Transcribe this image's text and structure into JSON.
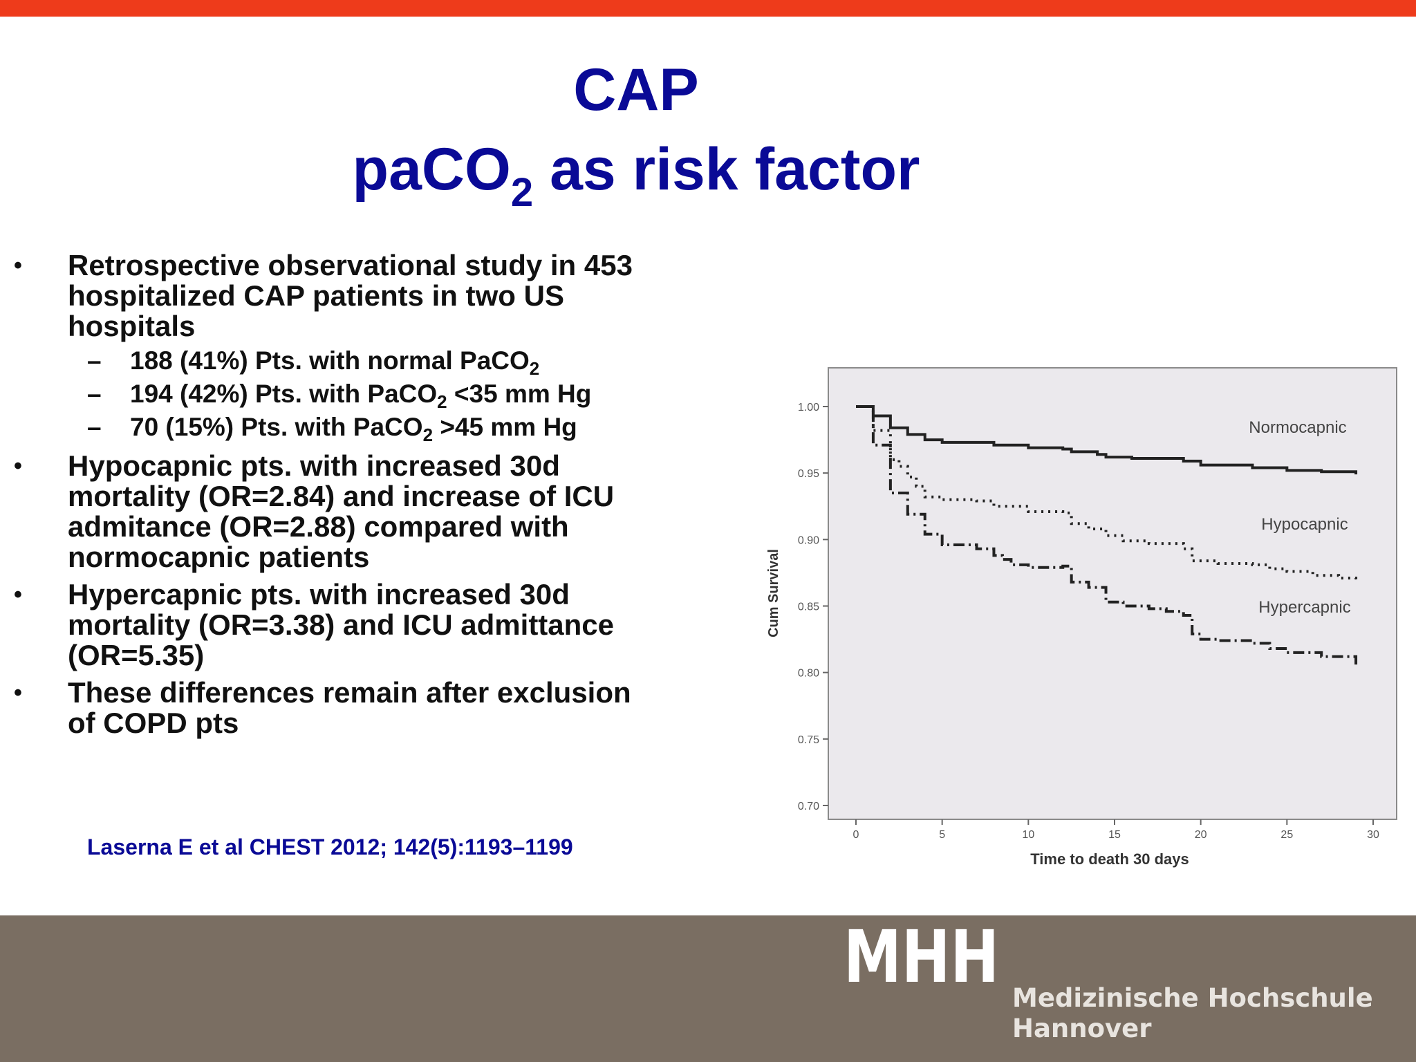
{
  "slide": {
    "title_line1": "CAP",
    "title_line2_part1": "paCO",
    "title_line2_sub": "2",
    "title_line2_part2": " as risk factor",
    "colors": {
      "accent_bar": "#ee3b1b",
      "title": "#0a0a96",
      "footer": "#7a6e62"
    }
  },
  "bullets": [
    {
      "text": "Retrospective observational study in 453 hospitalized CAP patients in two US hospitals",
      "subs": [
        {
          "pre": "188 (41%) Pts. with normal PaCO",
          "sub": "2",
          "post": ""
        },
        {
          "pre": "194 (42%) Pts. with PaCO",
          "sub": "2",
          "post": " <35 mm Hg"
        },
        {
          "pre": "70 (15%) Pts. with PaCO",
          "sub": "2",
          "post": " >45 mm Hg"
        }
      ]
    },
    {
      "text": "Hypocapnic pts. with increased 30d mortality (OR=2.84) and increase of ICU admitance (OR=2.88) compared with normocapnic patients"
    },
    {
      "text": "Hypercapnic pts. with increased 30d mortality (OR=3.38) and ICU admittance (OR=5.35)"
    },
    {
      "text": "These differences remain after exclusion of COPD pts"
    }
  ],
  "bullet_symbol": "•",
  "dash_symbol": "–",
  "citation": "Laserna E et al CHEST 2012; 142(5):1193–1199",
  "footer": {
    "logo_text": "MHH",
    "university_line1": "Medizinische Hochschule",
    "university_line2": "Hannover"
  },
  "chart_data": {
    "type": "line",
    "step": true,
    "xlabel": "Time to death 30 days",
    "ylabel": "Cum Survival",
    "xlim": [
      0,
      30
    ],
    "ylim": [
      0.7,
      1.0
    ],
    "x_ticks": [
      0,
      5,
      10,
      15,
      20,
      25,
      30
    ],
    "y_ticks": [
      1.0,
      0.95,
      0.9,
      0.85,
      0.8,
      0.75,
      0.7
    ],
    "y_tick_labels": [
      "1.00",
      "0.95",
      "0.90",
      "0.85",
      "0.80",
      "0.75",
      "0.70"
    ],
    "grid": false,
    "background": "#ebe9ed",
    "series": [
      {
        "name": "Normocapnic",
        "style": "solid",
        "points": [
          [
            0,
            1.0
          ],
          [
            1,
            0.993
          ],
          [
            2,
            0.984
          ],
          [
            3,
            0.979
          ],
          [
            4,
            0.975
          ],
          [
            5,
            0.973
          ],
          [
            8,
            0.971
          ],
          [
            10,
            0.969
          ],
          [
            12,
            0.968
          ],
          [
            12.5,
            0.966
          ],
          [
            14,
            0.964
          ],
          [
            14.5,
            0.962
          ],
          [
            16,
            0.961
          ],
          [
            19,
            0.959
          ],
          [
            20,
            0.956
          ],
          [
            23,
            0.954
          ],
          [
            25,
            0.952
          ],
          [
            27,
            0.951
          ],
          [
            29,
            0.949
          ]
        ]
      },
      {
        "name": "Hypocapnic",
        "style": "dotted",
        "points": [
          [
            0,
            1.0
          ],
          [
            1,
            0.982
          ],
          [
            2,
            0.96
          ],
          [
            2.5,
            0.955
          ],
          [
            3,
            0.947
          ],
          [
            3.5,
            0.94
          ],
          [
            4,
            0.932
          ],
          [
            5,
            0.93
          ],
          [
            7,
            0.929
          ],
          [
            8,
            0.925
          ],
          [
            10,
            0.921
          ],
          [
            12,
            0.92
          ],
          [
            12.5,
            0.912
          ],
          [
            13.5,
            0.908
          ],
          [
            14.5,
            0.903
          ],
          [
            15.5,
            0.899
          ],
          [
            17,
            0.897
          ],
          [
            19,
            0.893
          ],
          [
            19.5,
            0.884
          ],
          [
            21,
            0.882
          ],
          [
            23,
            0.881
          ],
          [
            24,
            0.878
          ],
          [
            25,
            0.876
          ],
          [
            26.5,
            0.873
          ],
          [
            28,
            0.871
          ],
          [
            29,
            0.867
          ]
        ]
      },
      {
        "name": "Hypercapnic",
        "style": "dashdot",
        "points": [
          [
            0,
            1.0
          ],
          [
            1,
            0.971
          ],
          [
            2,
            0.935
          ],
          [
            3,
            0.919
          ],
          [
            4,
            0.904
          ],
          [
            5,
            0.896
          ],
          [
            7,
            0.893
          ],
          [
            8,
            0.888
          ],
          [
            8.5,
            0.885
          ],
          [
            9,
            0.881
          ],
          [
            10,
            0.879
          ],
          [
            12,
            0.88
          ],
          [
            12.5,
            0.868
          ],
          [
            13.5,
            0.864
          ],
          [
            14.5,
            0.853
          ],
          [
            15.5,
            0.85
          ],
          [
            17,
            0.848
          ],
          [
            18,
            0.846
          ],
          [
            19,
            0.843
          ],
          [
            19.5,
            0.829
          ],
          [
            20,
            0.825
          ],
          [
            21,
            0.824
          ],
          [
            23,
            0.822
          ],
          [
            24,
            0.818
          ],
          [
            25,
            0.815
          ],
          [
            27,
            0.812
          ],
          [
            29,
            0.806
          ]
        ]
      }
    ],
    "legend_labels_on_lines": [
      "Normocapnic",
      "Hypocapnic",
      "Hypercapnic"
    ]
  }
}
